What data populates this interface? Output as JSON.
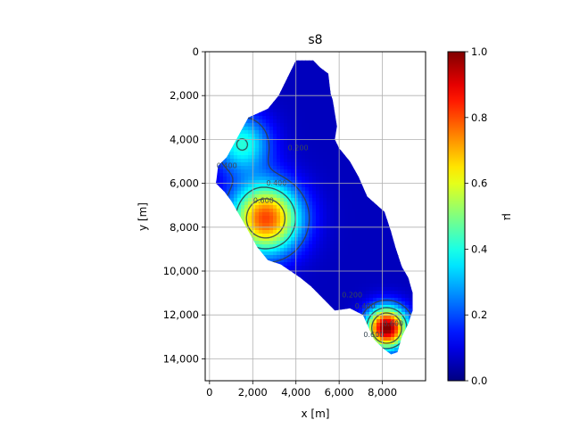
{
  "chart_data": {
    "type": "heatmap",
    "title": "s8",
    "xlabel": "x [m]",
    "ylabel": "y [m]",
    "xlim": [
      -200,
      10000
    ],
    "ylim": [
      15000,
      0
    ],
    "y_inverted": true,
    "grid": true,
    "x_ticks": [
      0,
      2000,
      4000,
      6000,
      8000
    ],
    "x_tick_labels": [
      "0",
      "2,000",
      "4,000",
      "6,000",
      "8,000"
    ],
    "y_ticks": [
      0,
      2000,
      4000,
      6000,
      8000,
      10000,
      12000,
      14000
    ],
    "y_tick_labels": [
      "0",
      "2,000",
      "4,000",
      "6,000",
      "8,000",
      "10,000",
      "12,000",
      "14,000"
    ],
    "colormap": "jet",
    "colorbar": {
      "label": "μ",
      "range": [
        0.0,
        1.0
      ],
      "ticks": [
        0.0,
        0.2,
        0.4,
        0.6,
        0.8,
        1.0
      ],
      "tick_labels": [
        "0.0",
        "0.2",
        "0.4",
        "0.6",
        "0.8",
        "1.0"
      ]
    },
    "contour_levels": [
      0.2,
      0.4,
      0.6
    ],
    "contour_labels": [
      {
        "text": "0.400",
        "x": 800,
        "y": 5300
      },
      {
        "text": "0.400",
        "x": 3100,
        "y": 6100
      },
      {
        "text": "0.600",
        "x": 2500,
        "y": 6900
      },
      {
        "text": "0.200",
        "x": 4100,
        "y": 4500
      },
      {
        "text": "0.200",
        "x": 6600,
        "y": 11200
      },
      {
        "text": "0.400",
        "x": 7200,
        "y": 11700
      },
      {
        "text": "0.600",
        "x": 7600,
        "y": 13000
      },
      {
        "text": "0.600",
        "x": 8500,
        "y": 12500
      }
    ],
    "domain_outline": [
      [
        4000,
        400
      ],
      [
        4800,
        400
      ],
      [
        5100,
        700
      ],
      [
        5500,
        1000
      ],
      [
        5600,
        1900
      ],
      [
        5700,
        2200
      ],
      [
        5900,
        3400
      ],
      [
        5800,
        4000
      ],
      [
        6000,
        4400
      ],
      [
        6500,
        5000
      ],
      [
        6900,
        5700
      ],
      [
        7300,
        6600
      ],
      [
        8100,
        7300
      ],
      [
        8400,
        8200
      ],
      [
        8600,
        8900
      ],
      [
        8900,
        9800
      ],
      [
        9200,
        10300
      ],
      [
        9400,
        11000
      ],
      [
        9400,
        11800
      ],
      [
        9200,
        12400
      ],
      [
        8900,
        13000
      ],
      [
        8700,
        13700
      ],
      [
        8400,
        13800
      ],
      [
        8000,
        13500
      ],
      [
        7600,
        13100
      ],
      [
        7100,
        12000
      ],
      [
        6500,
        11700
      ],
      [
        5800,
        11800
      ],
      [
        5200,
        11200
      ],
      [
        4700,
        10700
      ],
      [
        4200,
        10300
      ],
      [
        3300,
        9700
      ],
      [
        2700,
        9500
      ],
      [
        2200,
        8900
      ],
      [
        1700,
        8000
      ],
      [
        1000,
        6800
      ],
      [
        700,
        6400
      ],
      [
        300,
        6000
      ],
      [
        400,
        5200
      ],
      [
        800,
        4800
      ],
      [
        1300,
        3900
      ],
      [
        1800,
        3000
      ],
      [
        2700,
        2600
      ],
      [
        3200,
        2000
      ],
      [
        3600,
        1200
      ]
    ],
    "field_peaks": [
      {
        "x": 2600,
        "y": 7600,
        "amplitude": 0.75,
        "sigma": 1100
      },
      {
        "x": 8200,
        "y": 12600,
        "amplitude": 0.95,
        "sigma": 650
      },
      {
        "x": 1500,
        "y": 4200,
        "amplitude": 0.35,
        "sigma": 900
      }
    ],
    "field_background": 0.06
  }
}
